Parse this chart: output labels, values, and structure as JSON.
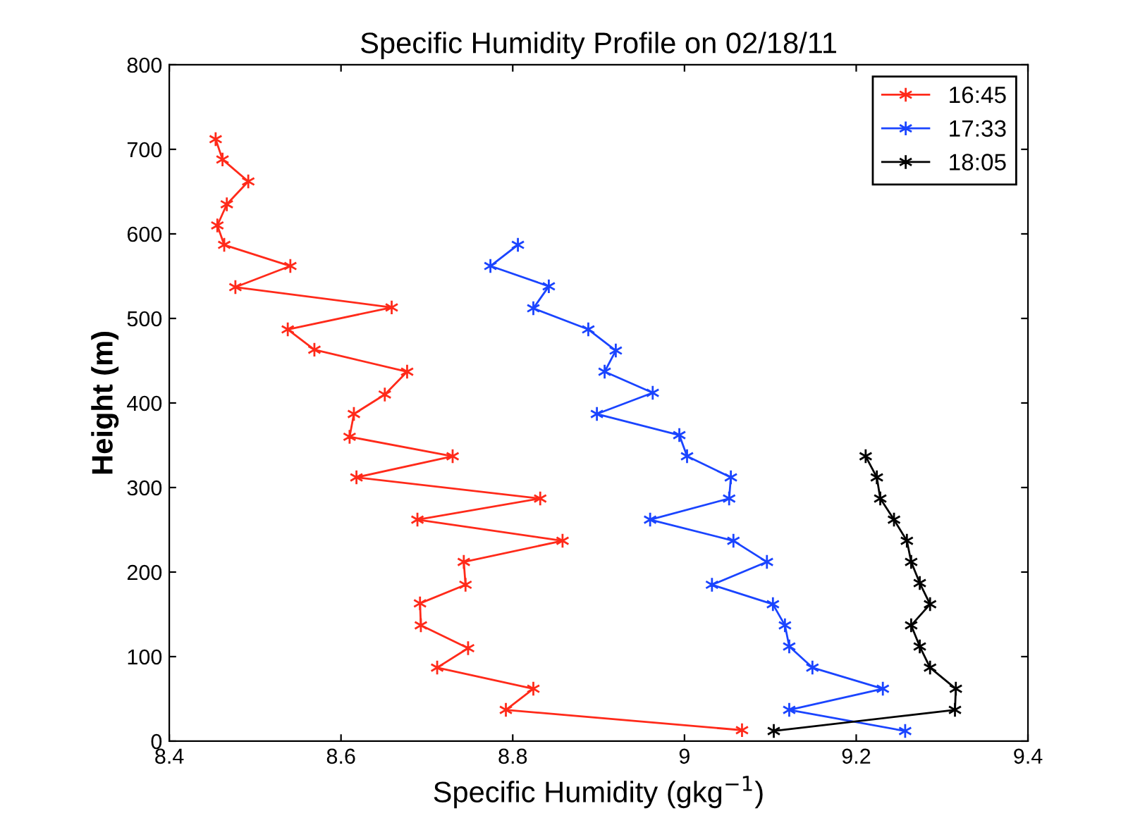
{
  "chart_data": {
    "type": "line",
    "title": "Specific Humidity Profile on 02/18/11",
    "xlabel": "Specific Humidity (gkg$^{−1}$)",
    "ylabel": "Height (m)",
    "xlim": [
      8.4,
      9.4
    ],
    "xticks": [
      8.4,
      8.6,
      8.8,
      9,
      9.2,
      9.4
    ],
    "ylim": [
      0,
      800
    ],
    "yticks": [
      0,
      100,
      200,
      300,
      400,
      500,
      600,
      700,
      800
    ],
    "grid": false,
    "legend": "top right",
    "marker": "cross",
    "line_style": "solid",
    "series": [
      {
        "name": "16:45",
        "color": "#ff2a1a",
        "x": [
          8.454,
          8.462,
          8.492,
          8.467,
          8.456,
          8.464,
          8.541,
          8.477,
          8.659,
          8.538,
          8.569,
          8.677,
          8.651,
          8.615,
          8.61,
          8.73,
          8.618,
          8.832,
          8.689,
          8.858,
          8.743,
          8.745,
          8.692,
          8.693,
          8.748,
          8.712,
          8.824,
          8.792,
          9.067
        ],
        "values": [
          712,
          688,
          662,
          635,
          610,
          587,
          562,
          537,
          513,
          487,
          463,
          437,
          410,
          387,
          360,
          337,
          312,
          287,
          262,
          237,
          212,
          185,
          163,
          137,
          110,
          87,
          62,
          37,
          13
        ]
      },
      {
        "name": "17:33",
        "color": "#1a44ff",
        "x": [
          8.806,
          8.774,
          8.842,
          8.824,
          8.888,
          8.92,
          8.907,
          8.963,
          8.898,
          8.994,
          9.003,
          9.054,
          9.052,
          8.96,
          9.057,
          9.096,
          9.032,
          9.103,
          9.117,
          9.122,
          9.149,
          9.231,
          9.122,
          9.257
        ],
        "values": [
          587,
          562,
          538,
          512,
          487,
          462,
          437,
          412,
          387,
          362,
          337,
          312,
          287,
          262,
          237,
          212,
          185,
          162,
          137,
          112,
          87,
          62,
          37,
          12
        ]
      },
      {
        "name": "18:05",
        "color": "#000000",
        "x": [
          9.211,
          9.224,
          9.228,
          9.244,
          9.259,
          9.264,
          9.274,
          9.286,
          9.264,
          9.274,
          9.286,
          9.316,
          9.315,
          9.104
        ],
        "values": [
          337,
          312,
          287,
          262,
          237,
          212,
          187,
          162,
          137,
          112,
          87,
          62,
          37,
          12
        ]
      }
    ]
  }
}
